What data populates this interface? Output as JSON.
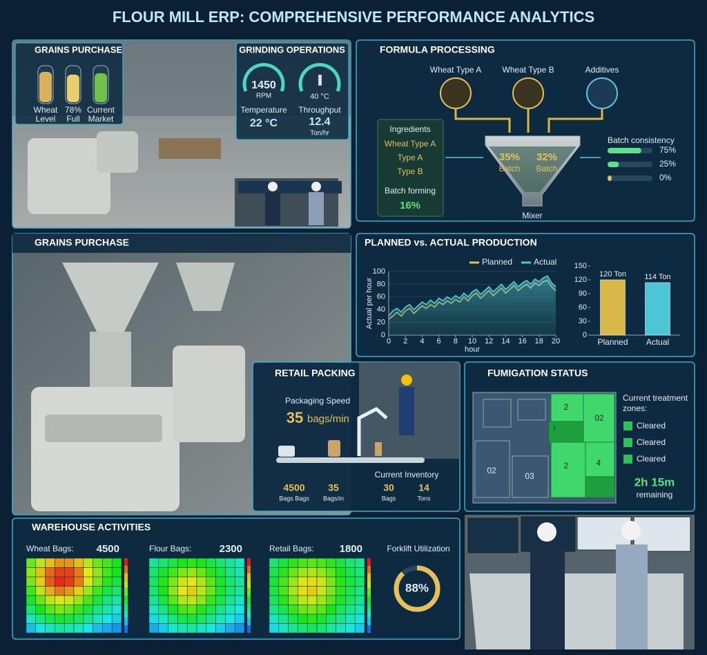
{
  "title": "FLOUR MILL ERP: COMPREHENSIVE PERFORMANCE ANALYTICS",
  "grains_purchase": {
    "title": "GRAINS PURCHASE",
    "tanks": [
      [
        "Wheat",
        "Level"
      ],
      [
        "78%",
        "Full"
      ],
      [
        "Current",
        "Market"
      ]
    ]
  },
  "grinding": {
    "title": "GRINDING OPERATIONS",
    "speed": 1450,
    "speed_unit": "RPM",
    "gauge_temp": "40 °C",
    "temperature_label": "Temperature",
    "temperature": "22 °C",
    "throughput_label": "Throughput",
    "throughput": 12.4,
    "throughput_unit": "Ton/hr"
  },
  "formula": {
    "title": "FORMULA PROCESSING",
    "inputs": [
      "Wheat Type A",
      "Wheat Type B",
      "Additives"
    ],
    "ingredients": {
      "title": "Ingredients",
      "items": [
        "Wheat Type A",
        "Type A",
        "Type B"
      ],
      "forming_label": "Batch forming",
      "forming": "16%"
    },
    "mixer": {
      "label": "Mixer",
      "batches": [
        {
          "value": "35%",
          "label": "Batch"
        },
        {
          "value": "32%",
          "label": "Batch"
        }
      ]
    },
    "consistency": {
      "label": "Batch consistency",
      "values": [
        75,
        25,
        0
      ],
      "value_labels": [
        "75%",
        "25%",
        "0%"
      ],
      "xlim": [
        0,
        100
      ],
      "colors": [
        "#5fe08a",
        "#5fe08a",
        "#e6c15a"
      ]
    }
  },
  "photo_panel": {
    "title": "GRAINS PURCHASE"
  },
  "chart_data": [
    {
      "type": "line",
      "title": "PLANNED vs. ACTUAL PRODUCTION",
      "y_label": "Actual per hour",
      "x_label": "hour",
      "x": [
        0,
        0.5,
        1,
        1.5,
        2,
        2.5,
        3,
        3.5,
        4,
        4.5,
        5,
        5.5,
        6,
        6.5,
        7,
        7.5,
        8,
        8.5,
        9,
        9.5,
        10,
        10.5,
        11,
        11.5,
        12,
        12.5,
        13,
        13.5,
        14,
        14.5,
        15,
        15.5,
        16,
        16.5,
        17,
        17.5,
        18,
        18.5,
        19,
        19.5,
        20
      ],
      "series": [
        {
          "name": "Planned",
          "color": "#e6c15a",
          "values": [
            25,
            30,
            36,
            30,
            38,
            42,
            34,
            40,
            46,
            42,
            48,
            44,
            52,
            48,
            54,
            50,
            56,
            52,
            60,
            54,
            62,
            66,
            58,
            64,
            70,
            62,
            68,
            74,
            66,
            72,
            78,
            70,
            76,
            80,
            74,
            82,
            78,
            84,
            86,
            76,
            70
          ]
        },
        {
          "name": "Actual",
          "color": "#4cc6d6",
          "area": true,
          "values": [
            30,
            38,
            42,
            36,
            44,
            48,
            40,
            46,
            52,
            48,
            55,
            50,
            58,
            54,
            60,
            56,
            62,
            58,
            66,
            60,
            68,
            72,
            64,
            70,
            76,
            68,
            74,
            80,
            72,
            78,
            84,
            76,
            82,
            86,
            80,
            88,
            84,
            90,
            93,
            82,
            76
          ]
        }
      ],
      "xlim": [
        0,
        20
      ],
      "xticks": [
        0,
        2,
        4,
        6,
        8,
        10,
        12,
        14,
        16,
        18,
        20
      ],
      "ylim": [
        0,
        100
      ],
      "yticks": [
        0,
        20,
        40,
        60,
        80,
        100
      ],
      "grid": true
    },
    {
      "type": "bar",
      "categories": [
        "Planned",
        "Actual"
      ],
      "values": [
        120,
        114
      ],
      "value_labels": [
        "120 Ton",
        "114 Ton"
      ],
      "colors": [
        "#d9b84a",
        "#4cc6d6"
      ],
      "ylim": [
        0,
        150
      ],
      "yticks": [
        0,
        30,
        60,
        90,
        120,
        150
      ]
    }
  ],
  "retail_packing": {
    "title": "RETAIL PACKING",
    "speed_label": "Packaging Speed",
    "speed": 35,
    "speed_unit": "bags/min",
    "stats": [
      {
        "value": 4500,
        "unit": "Bags Bags"
      },
      {
        "value": 35,
        "unit": "Bags/in"
      }
    ],
    "inventory_label": "Current Inventory",
    "inventory": [
      {
        "value": 30,
        "unit": "Bags"
      },
      {
        "value": 14,
        "unit": "Tons"
      }
    ]
  },
  "fumigation": {
    "title": "FUMIGATION STATUS",
    "zone_labels": [
      "2",
      "02",
      "f",
      "2",
      "4",
      "02",
      "03"
    ],
    "treatment_label": [
      "Current treatment",
      "zones:"
    ],
    "status": [
      "Cleared",
      "Cleared",
      "Cleared"
    ],
    "remaining_time": "2h 15m",
    "remaining_label": "remaining"
  },
  "warehouse": {
    "title": "WAREHOUSE ACTIVITIES",
    "zlim": [
      0,
      100
    ],
    "heatmaps": [
      {
        "label": "Wheat Bags:",
        "value": 4500,
        "cells": [
          [
            60,
            70,
            80,
            85,
            85,
            80,
            70,
            60,
            55,
            50
          ],
          [
            65,
            80,
            90,
            95,
            95,
            88,
            75,
            65,
            55,
            50
          ],
          [
            62,
            78,
            92,
            98,
            96,
            88,
            74,
            62,
            52,
            45
          ],
          [
            55,
            70,
            82,
            88,
            85,
            78,
            66,
            55,
            45,
            40
          ],
          [
            48,
            60,
            70,
            74,
            72,
            66,
            56,
            46,
            38,
            34
          ],
          [
            40,
            50,
            58,
            62,
            60,
            54,
            46,
            38,
            32,
            28
          ],
          [
            30,
            38,
            44,
            48,
            46,
            42,
            36,
            30,
            25,
            22
          ],
          [
            20,
            26,
            30,
            34,
            32,
            30,
            25,
            20,
            18,
            15
          ]
        ]
      },
      {
        "label": "Flour Bags:",
        "value": 2300,
        "cells": [
          [
            35,
            40,
            45,
            50,
            52,
            50,
            45,
            40,
            35,
            30
          ],
          [
            40,
            48,
            55,
            62,
            65,
            60,
            52,
            45,
            38,
            32
          ],
          [
            42,
            52,
            62,
            72,
            75,
            68,
            58,
            48,
            40,
            34
          ],
          [
            40,
            50,
            64,
            75,
            78,
            70,
            60,
            48,
            40,
            34
          ],
          [
            36,
            46,
            58,
            68,
            70,
            64,
            54,
            44,
            36,
            30
          ],
          [
            30,
            38,
            48,
            56,
            58,
            52,
            44,
            36,
            30,
            26
          ],
          [
            24,
            30,
            38,
            44,
            46,
            42,
            36,
            30,
            25,
            22
          ],
          [
            18,
            22,
            28,
            32,
            34,
            30,
            26,
            22,
            18,
            15
          ]
        ]
      },
      {
        "label": "Retail Bags:",
        "value": 1800,
        "cells": [
          [
            40,
            46,
            52,
            56,
            58,
            56,
            52,
            46,
            40,
            36
          ],
          [
            44,
            52,
            60,
            66,
            68,
            65,
            58,
            50,
            44,
            38
          ],
          [
            46,
            56,
            66,
            74,
            76,
            72,
            62,
            52,
            45,
            40
          ],
          [
            45,
            56,
            68,
            76,
            78,
            72,
            62,
            52,
            44,
            38
          ],
          [
            42,
            52,
            62,
            70,
            72,
            66,
            58,
            48,
            42,
            36
          ],
          [
            36,
            44,
            54,
            60,
            62,
            58,
            50,
            42,
            36,
            32
          ],
          [
            30,
            36,
            44,
            50,
            52,
            48,
            42,
            36,
            30,
            26
          ],
          [
            24,
            30,
            36,
            40,
            42,
            40,
            34,
            30,
            26,
            22
          ]
        ]
      }
    ],
    "forklift": {
      "label": "Forklift Utilization",
      "value": 88,
      "value_label": "88%",
      "lim": [
        0,
        100
      ]
    }
  }
}
